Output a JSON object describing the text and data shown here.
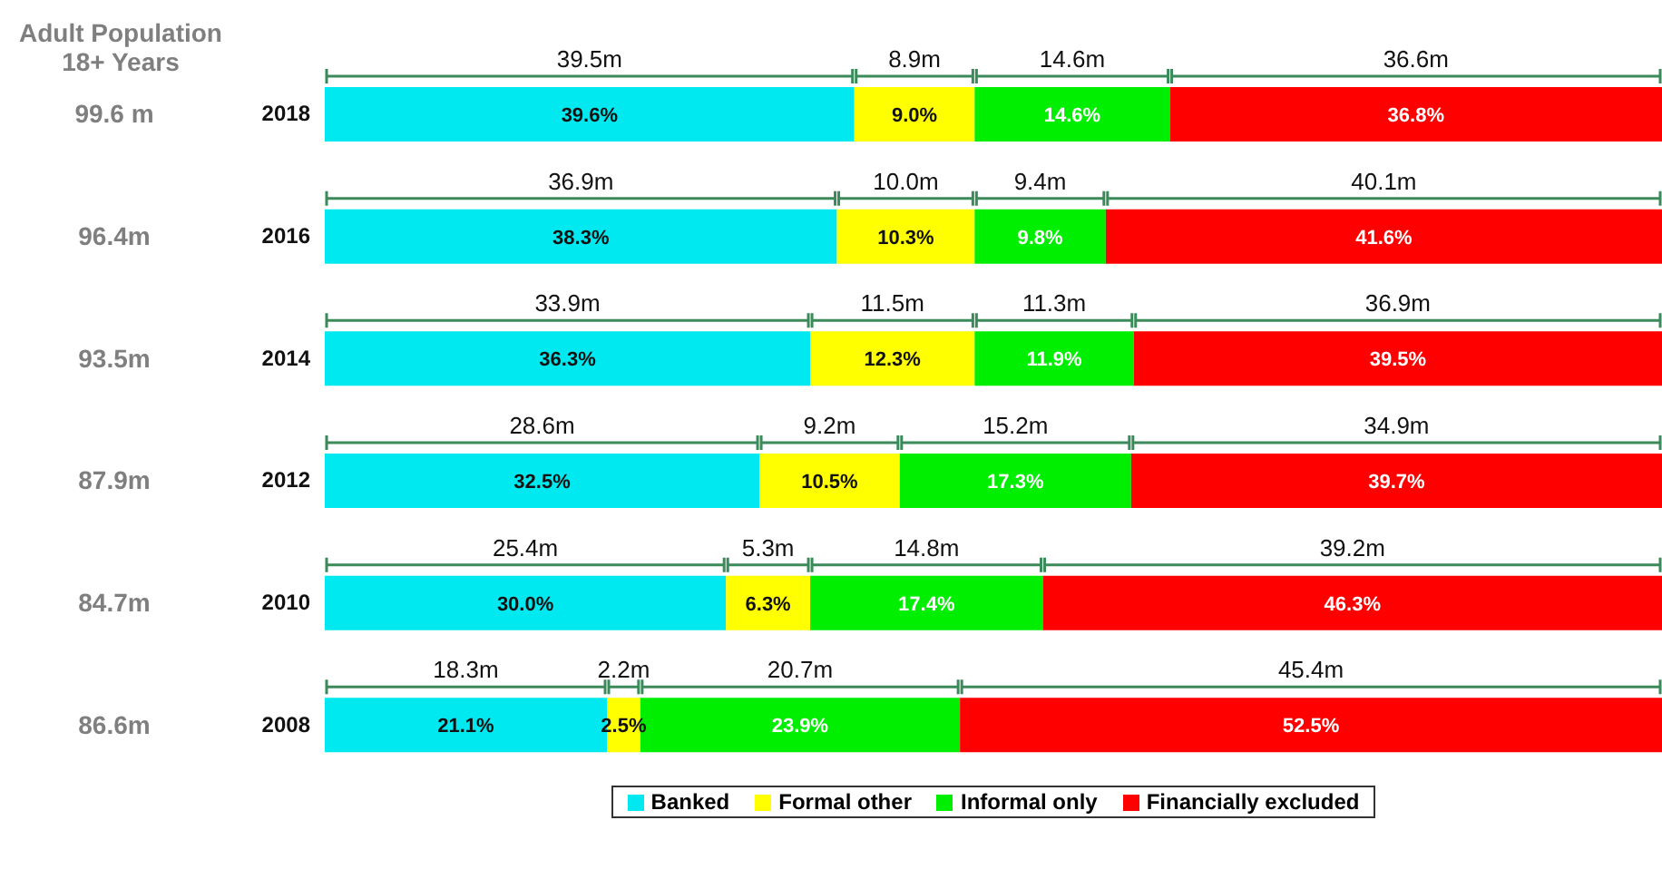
{
  "chart_data": {
    "type": "bar",
    "orientation": "horizontal",
    "stacked": true,
    "ylabel": "Adult Population 18+ Years",
    "categories": [
      "2018",
      "2016",
      "2014",
      "2012",
      "2010",
      "2008"
    ],
    "xlim": [
      0,
      100
    ],
    "tick_labels": "y",
    "legend": "bottom",
    "grid": false,
    "series": [
      {
        "name": "Banked",
        "color": "#00e8f0",
        "values": [
          39.6,
          38.3,
          36.3,
          32.5,
          30.0,
          21.1
        ],
        "value_labels": [
          "39.6%",
          "38.3%",
          "36.3%",
          "32.5%",
          "30.0%",
          "21.1%"
        ]
      },
      {
        "name": "Formal other",
        "color": "#ffff00",
        "values": [
          9.0,
          10.3,
          12.3,
          10.5,
          6.3,
          2.5
        ],
        "value_labels": [
          "9.0%",
          "10.3%",
          "12.3%",
          "10.5%",
          "6.3%",
          "2.5%"
        ]
      },
      {
        "name": "Informal only",
        "color": "#00ee00",
        "values": [
          14.6,
          9.8,
          11.9,
          17.3,
          17.4,
          23.9
        ],
        "value_labels": [
          "14.6%",
          "9.8%",
          "11.9%",
          "17.3%",
          "17.4%",
          "23.9%"
        ]
      },
      {
        "name": "Financially excluded",
        "color": "#ff0000",
        "values": [
          36.8,
          41.6,
          39.5,
          39.7,
          46.3,
          52.5
        ],
        "value_labels": [
          "36.8%",
          "41.6%",
          "39.5%",
          "39.7%",
          "46.3%",
          "52.5%"
        ]
      }
    ],
    "annotations": [
      "99.6 m",
      "96.4m",
      "93.5m",
      "87.9m",
      "84.7m",
      "86.6m",
      "39.5m",
      "8.9m",
      "14.6m",
      "36.6m",
      "36.9m",
      "10.0m",
      "9.4m",
      "40.1m",
      "33.9m",
      "11.5m",
      "11.3m",
      "36.9m",
      "28.6m",
      "9.2m",
      "15.2m",
      "34.9m",
      "25.4m",
      "5.3m",
      "14.8m",
      "39.2m",
      "18.3m",
      "2.2m",
      "20.7m",
      "45.4m"
    ]
  }
}
